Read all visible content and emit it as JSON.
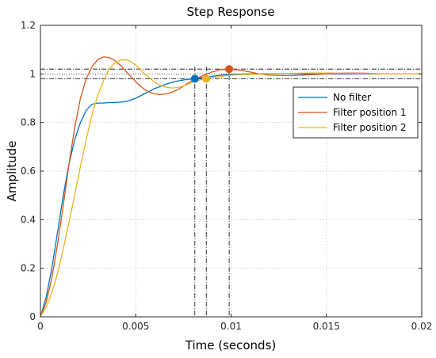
{
  "chart_data": {
    "type": "line",
    "title": "Step Response",
    "xlabel": "Time (seconds)",
    "ylabel": "Amplitude",
    "xlim": [
      0,
      0.02
    ],
    "ylim": [
      0,
      1.2
    ],
    "grid": true,
    "legend_position": "upper-right",
    "x_ticks": [
      0,
      0.005,
      0.01,
      0.015,
      0.02
    ],
    "x_tick_labels": [
      "0",
      "0.005",
      "0.01",
      "0.015",
      "0.02"
    ],
    "y_ticks": [
      0,
      0.2,
      0.4,
      0.6,
      0.8,
      1,
      1.2
    ],
    "y_tick_labels": [
      "0",
      "0.2",
      "0.4",
      "0.6",
      "0.8",
      "1",
      "1.2"
    ],
    "settling_band": [
      0.98,
      1.02
    ],
    "series": [
      {
        "name": "No filter",
        "color": "#0072BD",
        "x": [
          0,
          0.0003,
          0.0006,
          0.0009,
          0.0012,
          0.0015,
          0.0018,
          0.0021,
          0.0024,
          0.0027,
          0.003,
          0.0033,
          0.0036,
          0.0039,
          0.0042,
          0.0045,
          0.005,
          0.0055,
          0.006,
          0.0065,
          0.007,
          0.0075,
          0.008,
          0.0085,
          0.009,
          0.0095,
          0.01,
          0.011,
          0.012,
          0.013,
          0.014,
          0.015,
          0.016,
          0.017,
          0.018,
          0.019,
          0.02
        ],
        "y": [
          0,
          0.08,
          0.2,
          0.35,
          0.5,
          0.63,
          0.73,
          0.8,
          0.85,
          0.875,
          0.88,
          0.88,
          0.882,
          0.882,
          0.884,
          0.886,
          0.9,
          0.92,
          0.94,
          0.955,
          0.968,
          0.975,
          0.98,
          0.985,
          0.99,
          0.995,
          0.998,
          1.0,
          1.001,
          1.001,
          1.0,
          1.0,
          1.0,
          1.0,
          1.0,
          1.0,
          1.0
        ]
      },
      {
        "name": "Filter position 1",
        "color": "#D95319",
        "x": [
          0,
          0.0003,
          0.0006,
          0.0009,
          0.0012,
          0.0015,
          0.0018,
          0.0021,
          0.0024,
          0.0027,
          0.003,
          0.0033,
          0.0036,
          0.0039,
          0.0042,
          0.0045,
          0.0048,
          0.0051,
          0.0054,
          0.0057,
          0.006,
          0.0063,
          0.0066,
          0.0069,
          0.0072,
          0.0075,
          0.0078,
          0.0081,
          0.0085,
          0.009,
          0.0095,
          0.01,
          0.0105,
          0.011,
          0.0115,
          0.012,
          0.013,
          0.014,
          0.015,
          0.016,
          0.017,
          0.018,
          0.019,
          0.02
        ],
        "y": [
          0,
          0.06,
          0.16,
          0.3,
          0.46,
          0.63,
          0.78,
          0.9,
          0.98,
          1.03,
          1.058,
          1.07,
          1.068,
          1.055,
          1.035,
          1.01,
          0.985,
          0.96,
          0.94,
          0.925,
          0.918,
          0.915,
          0.918,
          0.925,
          0.935,
          0.95,
          0.965,
          0.978,
          0.992,
          1.008,
          1.018,
          1.02,
          1.015,
          1.008,
          1.0,
          0.995,
          0.993,
          0.996,
          1.0,
          1.004,
          1.003,
          1.0,
          1.0,
          1.0
        ]
      },
      {
        "name": "Filter position 2",
        "color": "#EDB120",
        "x": [
          0,
          0.0003,
          0.0006,
          0.0009,
          0.0012,
          0.0015,
          0.0018,
          0.0021,
          0.0024,
          0.0027,
          0.003,
          0.0033,
          0.0036,
          0.0039,
          0.0042,
          0.0045,
          0.0048,
          0.0051,
          0.0054,
          0.0057,
          0.006,
          0.0063,
          0.0066,
          0.0069,
          0.0072,
          0.0075,
          0.0078,
          0.0081,
          0.0084,
          0.0087,
          0.009,
          0.0095,
          0.01,
          0.0105,
          0.011,
          0.0115,
          0.012,
          0.013,
          0.014,
          0.015,
          0.016,
          0.017,
          0.018,
          0.019,
          0.02
        ],
        "y": [
          0,
          0.04,
          0.1,
          0.18,
          0.28,
          0.39,
          0.5,
          0.62,
          0.73,
          0.83,
          0.91,
          0.97,
          1.02,
          1.045,
          1.058,
          1.058,
          1.048,
          1.03,
          1.005,
          0.985,
          0.965,
          0.952,
          0.945,
          0.942,
          0.944,
          0.95,
          0.96,
          0.97,
          0.976,
          0.98,
          0.985,
          0.99,
          0.995,
          0.997,
          0.998,
          0.999,
          1.0,
          1.002,
          1.004,
          1.004,
          1.003,
          1.002,
          1.0,
          1.0,
          1.0
        ]
      }
    ],
    "markers": [
      {
        "series": "No filter",
        "x": 0.0081,
        "y": 0.98,
        "color": "#0072BD"
      },
      {
        "series": "Filter position 1",
        "x": 0.0099,
        "y": 1.02,
        "color": "#D95319"
      },
      {
        "series": "Filter position 2",
        "x": 0.0087,
        "y": 0.98,
        "color": "#EDB120"
      }
    ],
    "vertical_guides": [
      0.0081,
      0.0087,
      0.0099
    ]
  }
}
